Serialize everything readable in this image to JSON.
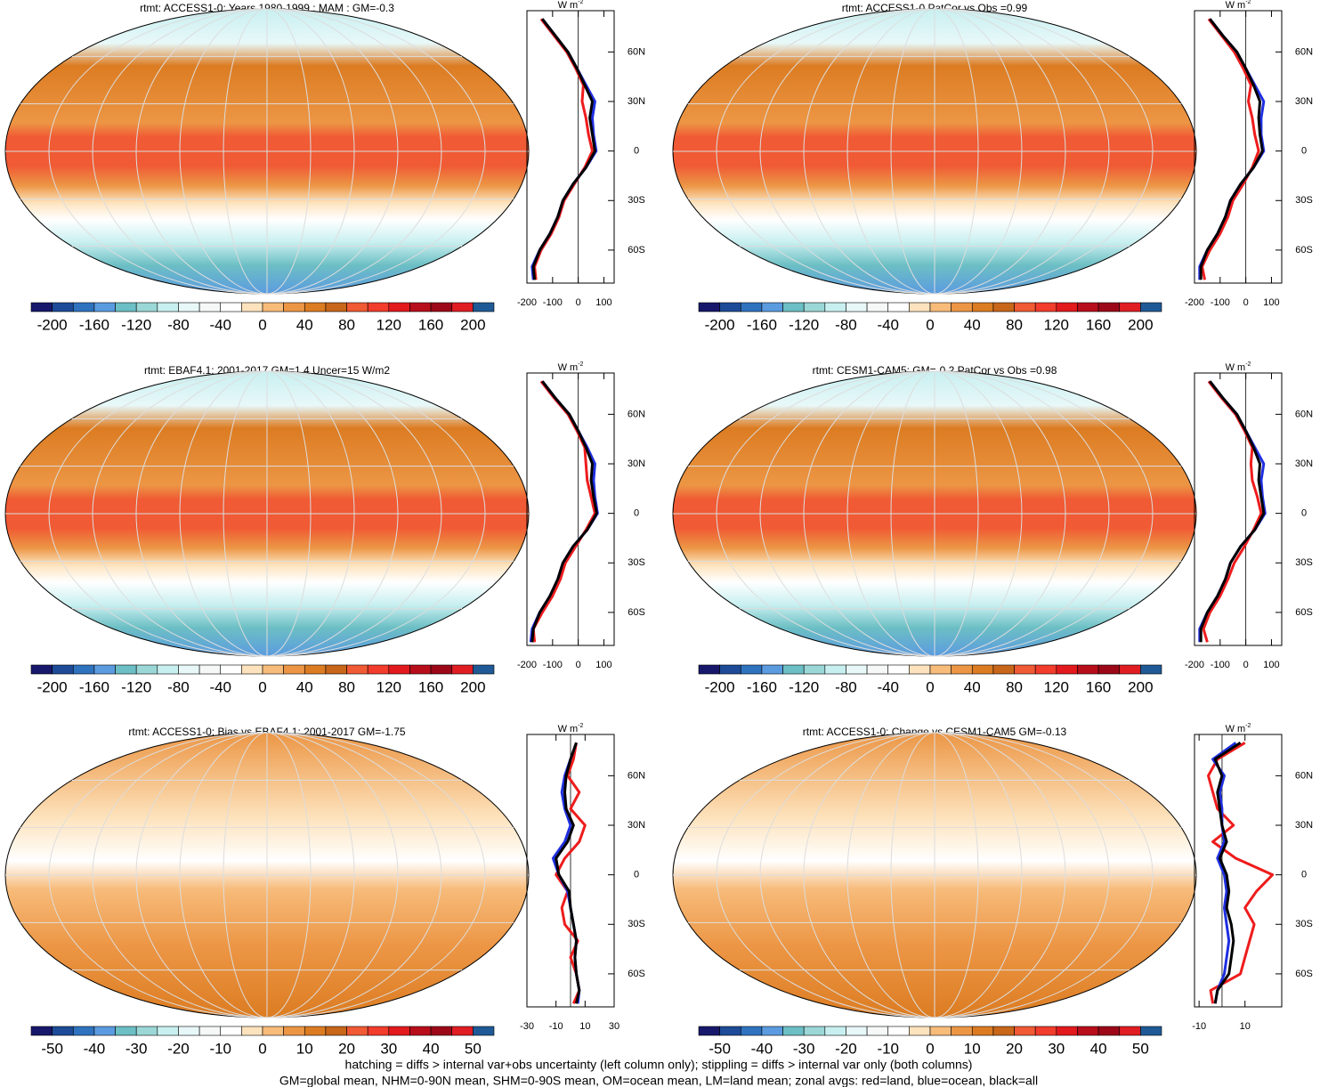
{
  "colorbar_colors": [
    "#17186b",
    "#1d4b97",
    "#2f73bf",
    "#5b9be0",
    "#6cbfc4",
    "#9bd7d6",
    "#c8eff0",
    "#e8f8f9",
    "#f6f8f8",
    "#ffffff",
    "#fde3bd",
    "#f7bb7a",
    "#ec9645",
    "#dc7c22",
    "#c8661a",
    "#f05a34",
    "#f23c2c",
    "#e2191d",
    "#b80d1a",
    "#9c0818",
    "#e01d23",
    "#1f5a96"
  ],
  "latitudes": [
    -78,
    -70,
    -60,
    -50,
    -40,
    -30,
    -20,
    -10,
    0,
    10,
    20,
    30,
    40,
    50,
    60,
    70,
    80
  ],
  "lat_lim": [
    -80,
    85
  ],
  "lat_ticks": [
    {
      "value": 60,
      "label": "60N"
    },
    {
      "value": 30,
      "label": "30N"
    },
    0,
    {
      "value": -30,
      "label": "30S"
    },
    {
      "value": -60,
      "label": "60S"
    }
  ],
  "unit": {
    "base": "W m",
    "exp": "-2"
  },
  "chart_data": [
    {
      "type": "map-zonal",
      "title": "rtmt: ACCESS1-0: Years 1980-1999 : MAM : GM=-0.3",
      "colorbar": {
        "lim": [
          -220,
          220
        ],
        "ticks": [
          -200,
          -160,
          -120,
          -80,
          -40,
          0,
          40,
          80,
          120,
          160,
          200
        ]
      },
      "xlim": [
        -200,
        140
      ],
      "xticks": [
        -200,
        -100,
        0,
        100
      ],
      "series": [
        {
          "color": "#ee1c1c",
          "values": [
            -165,
            -170,
            -145,
            -105,
            -75,
            -55,
            -15,
            25,
            55,
            40,
            30,
            15,
            20,
            -10,
            -45,
            -95,
            -145
          ]
        },
        {
          "color": "#1f2fe0",
          "values": [
            -175,
            -180,
            -150,
            -110,
            -80,
            -60,
            -20,
            30,
            70,
            60,
            55,
            65,
            30,
            -5,
            -40,
            -90,
            -140
          ]
        },
        {
          "color": "#000000",
          "values": [
            -170,
            -175,
            -150,
            -110,
            -80,
            -60,
            -20,
            30,
            65,
            55,
            45,
            55,
            25,
            -5,
            -40,
            -90,
            -140
          ]
        }
      ]
    },
    {
      "type": "map-zonal",
      "title": "rtmt: ACCESS1-0 PatCor vs Obs =0.99",
      "colorbar": {
        "lim": [
          -220,
          220
        ],
        "ticks": [
          -200,
          -160,
          -120,
          -80,
          -40,
          0,
          40,
          80,
          120,
          160,
          200
        ]
      },
      "xlim": [
        -200,
        140
      ],
      "xticks": [
        -200,
        -100,
        0,
        100
      ],
      "series": [
        {
          "color": "#ee1c1c",
          "values": [
            -160,
            -170,
            -140,
            -100,
            -70,
            -50,
            -10,
            25,
            50,
            35,
            25,
            10,
            20,
            -10,
            -45,
            -95,
            -145
          ]
        },
        {
          "color": "#1f2fe0",
          "values": [
            -180,
            -180,
            -150,
            -110,
            -80,
            -60,
            -20,
            30,
            70,
            60,
            60,
            70,
            35,
            0,
            -35,
            -90,
            -140
          ]
        },
        {
          "color": "#000000",
          "values": [
            -175,
            -175,
            -150,
            -110,
            -80,
            -60,
            -20,
            30,
            65,
            55,
            50,
            55,
            30,
            0,
            -35,
            -90,
            -140
          ]
        }
      ]
    },
    {
      "type": "map-zonal",
      "title": "rtmt: EBAF4.1: 2001-2017 GM=1.4 Uncer=15 W/m2",
      "colorbar": {
        "lim": [
          -220,
          220
        ],
        "ticks": [
          -200,
          -160,
          -120,
          -80,
          -40,
          0,
          40,
          80,
          120,
          160,
          200
        ]
      },
      "xlim": [
        -200,
        140
      ],
      "xticks": [
        -200,
        -100,
        0,
        100
      ],
      "series": [
        {
          "color": "#ee1c1c",
          "values": [
            -170,
            -175,
            -140,
            -100,
            -70,
            -50,
            -10,
            30,
            65,
            50,
            35,
            30,
            25,
            -5,
            -40,
            -95,
            -145
          ]
        },
        {
          "color": "#1f2fe0",
          "values": [
            -185,
            -180,
            -150,
            -110,
            -80,
            -60,
            -20,
            35,
            75,
            65,
            60,
            65,
            35,
            0,
            -35,
            -90,
            -140
          ]
        },
        {
          "color": "#000000",
          "values": [
            -180,
            -175,
            -150,
            -110,
            -80,
            -60,
            -20,
            35,
            72,
            60,
            50,
            55,
            30,
            0,
            -35,
            -90,
            -140
          ]
        }
      ]
    },
    {
      "type": "map-zonal",
      "title": "rtmt: CESM1-CAM5: GM=-0.2 PatCor vs Obs =0.98",
      "colorbar": {
        "lim": [
          -220,
          220
        ],
        "ticks": [
          -200,
          -160,
          -120,
          -80,
          -40,
          0,
          40,
          80,
          120,
          160,
          200
        ]
      },
      "xlim": [
        -200,
        140
      ],
      "xticks": [
        -200,
        -100,
        0,
        100
      ],
      "series": [
        {
          "color": "#ee1c1c",
          "values": [
            -150,
            -165,
            -140,
            -100,
            -70,
            -45,
            -5,
            30,
            60,
            45,
            25,
            20,
            25,
            -5,
            -40,
            -95,
            -145
          ]
        },
        {
          "color": "#1f2fe0",
          "values": [
            -180,
            -180,
            -150,
            -110,
            -80,
            -60,
            -20,
            35,
            75,
            65,
            60,
            70,
            35,
            0,
            -35,
            -90,
            -140
          ]
        },
        {
          "color": "#000000",
          "values": [
            -175,
            -175,
            -150,
            -110,
            -80,
            -60,
            -20,
            35,
            70,
            60,
            50,
            55,
            30,
            0,
            -35,
            -90,
            -140
          ]
        }
      ]
    },
    {
      "type": "map-zonal",
      "title": "rtmt: ACCESS1-0: Bias vs EBAF4.1: 2001-2017 GM=-1.75",
      "colorbar": {
        "lim": [
          -55,
          55
        ],
        "ticks": [
          -50,
          -40,
          -30,
          -20,
          -10,
          0,
          10,
          20,
          30,
          40,
          50
        ]
      },
      "xlim": [
        -30,
        30
      ],
      "xticks": [
        -30,
        -10,
        10,
        30
      ],
      "series": [
        {
          "color": "#ee1c1c",
          "values": [
            2,
            6,
            4,
            0,
            5,
            -4,
            -6,
            -2,
            -10,
            -4,
            6,
            10,
            0,
            6,
            -2,
            2,
            4
          ]
        },
        {
          "color": "#1f2fe0",
          "values": [
            5,
            6,
            4,
            3,
            4,
            2,
            0,
            -2,
            -8,
            -12,
            -4,
            0,
            -4,
            -6,
            -4,
            0,
            4
          ]
        },
        {
          "color": "#000000",
          "values": [
            4,
            6,
            4,
            3,
            4,
            2,
            0,
            -1,
            -8,
            -10,
            -2,
            2,
            -3,
            -4,
            -3,
            0,
            4
          ]
        }
      ]
    },
    {
      "type": "map-zonal",
      "title": "rtmt: ACCESS1-0: Change vs CESM1-CAM5 GM=-0.13",
      "colorbar": {
        "lim": [
          -55,
          55
        ],
        "ticks": [
          -50,
          -40,
          -30,
          -20,
          -10,
          0,
          10,
          20,
          30,
          40,
          50
        ]
      },
      "xlim": [
        -12,
        26
      ],
      "xticks": [
        -10,
        10
      ],
      "series": [
        {
          "color": "#ee1c1c",
          "values": [
            -4,
            -5,
            8,
            10,
            12,
            14,
            10,
            15,
            22,
            6,
            -4,
            5,
            -2,
            -4,
            -6,
            -2,
            10
          ]
        },
        {
          "color": "#1f2fe0",
          "values": [
            -3,
            -2,
            1,
            2,
            3,
            2,
            1,
            2,
            1,
            -2,
            1,
            0,
            0,
            -1,
            1,
            -4,
            6
          ]
        },
        {
          "color": "#000000",
          "values": [
            -3,
            -2,
            3,
            4,
            5,
            4,
            2,
            3,
            2,
            -1,
            2,
            0,
            -1,
            -2,
            0,
            -3,
            8
          ]
        }
      ]
    }
  ],
  "notes": [
    "hatching = diffs > internal var+obs uncertainty (left column only); stippling = diffs > internal var only (both columns)",
    "GM=global mean, NHM=0-90N mean, SHM=0-90S mean, OM=ocean mean, LM=land mean; zonal avgs: red=land, blue=ocean, black=all"
  ]
}
